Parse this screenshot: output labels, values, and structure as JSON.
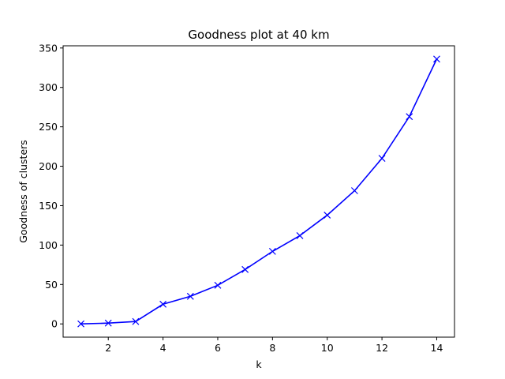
{
  "chart_data": {
    "type": "line",
    "title": "Goodness plot at 40 km",
    "xlabel": "k",
    "ylabel": "Goodness of clusters",
    "x": [
      1,
      2,
      3,
      4,
      5,
      6,
      7,
      8,
      9,
      10,
      11,
      12,
      13,
      14
    ],
    "series": [
      {
        "values": [
          0,
          1,
          3,
          25,
          35,
          49,
          69,
          92,
          112,
          138,
          169,
          210,
          263,
          336
        ],
        "color": "#0000ff",
        "marker": "x"
      }
    ],
    "xlim": [
      0.35,
      14.65
    ],
    "ylim": [
      -16.8,
      352.8
    ],
    "xticks": [
      2,
      4,
      6,
      8,
      10,
      12,
      14
    ],
    "yticks": [
      0,
      50,
      100,
      150,
      200,
      250,
      300,
      350
    ],
    "grid": false,
    "legend": false
  }
}
